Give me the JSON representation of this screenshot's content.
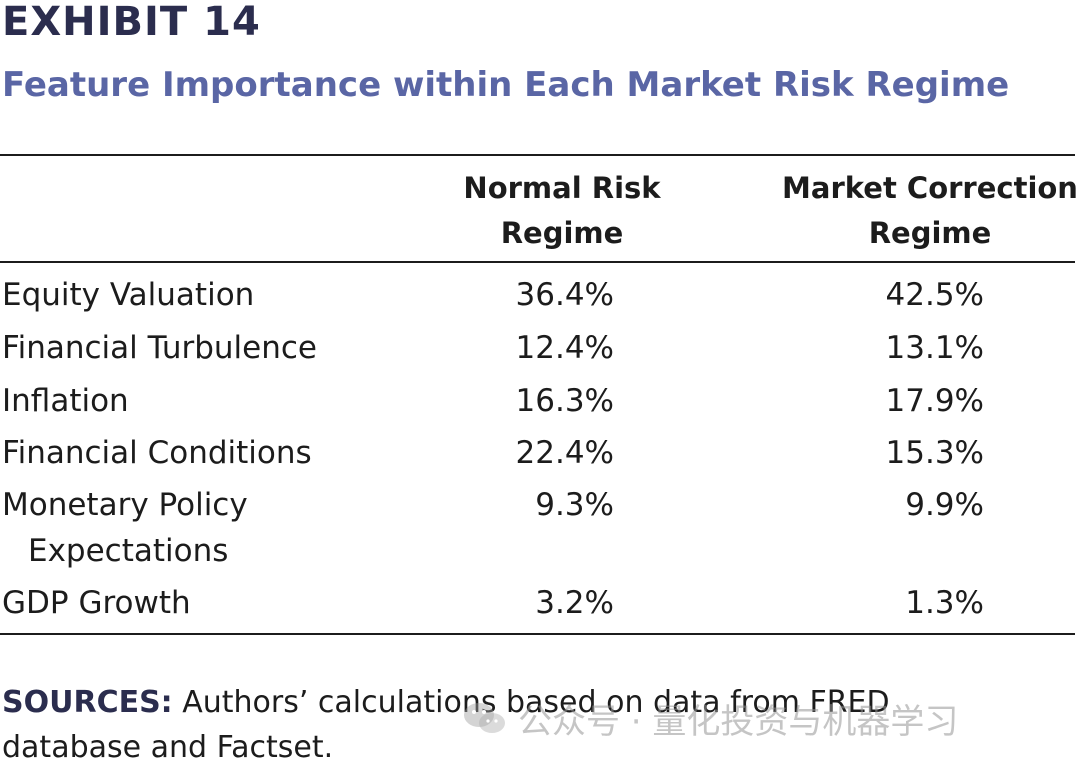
{
  "exhibit": {
    "label": "EXHIBIT 14",
    "title": "Feature Importance within Each Market Risk Regime"
  },
  "table": {
    "columns": [
      {
        "line1": "Normal Risk",
        "line2": "Regime"
      },
      {
        "line1": "Market Correction",
        "line2": "Regime"
      }
    ],
    "rows": [
      {
        "label": "Equity Valuation",
        "label_cont": "",
        "normal": "36.4%",
        "correction": "42.5%"
      },
      {
        "label": "Financial Turbulence",
        "label_cont": "",
        "normal": "12.4%",
        "correction": "13.1%"
      },
      {
        "label": "Inflation",
        "label_cont": "",
        "normal": "16.3%",
        "correction": "17.9%"
      },
      {
        "label": "Financial Conditions",
        "label_cont": "",
        "normal": "22.4%",
        "correction": "15.3%"
      },
      {
        "label": "Monetary Policy",
        "label_cont": "Expectations",
        "normal": "9.3%",
        "correction": "9.9%"
      },
      {
        "label": "GDP Growth",
        "label_cont": "",
        "normal": "3.2%",
        "correction": "1.3%"
      }
    ]
  },
  "sources": {
    "label": "SOURCES:",
    "text": " Authors’ calculations based on data from FRED database and Factset."
  },
  "watermark": {
    "text": "公众号 · 量化投资与机器学习"
  },
  "colors": {
    "label": "#2b2d4e",
    "title": "#5a66a5",
    "text": "#1c1c1c"
  }
}
